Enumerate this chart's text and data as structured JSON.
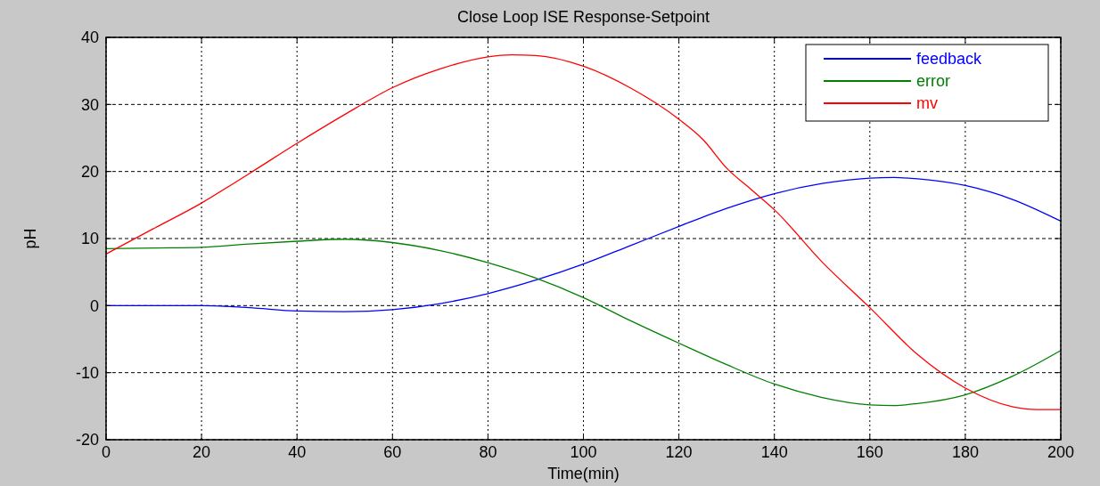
{
  "chart_data": {
    "type": "line",
    "title": "Close Loop ISE Response-Setpoint",
    "xlabel": "Time(min)",
    "ylabel": "pH",
    "xlim": [
      0,
      200
    ],
    "xticks": [
      0,
      20,
      40,
      60,
      80,
      100,
      120,
      140,
      160,
      180,
      200
    ],
    "ylim": [
      -20,
      40
    ],
    "yticks": [
      -20,
      -10,
      0,
      10,
      20,
      30,
      40
    ],
    "grid": true,
    "legend": "top right",
    "line_style": "solid",
    "series": [
      {
        "name": "feedback",
        "color": "#0000ff",
        "x": [
          0,
          10,
          20,
          30,
          40,
          50,
          60,
          70,
          80,
          90,
          100,
          110,
          120,
          130,
          140,
          150,
          160,
          165,
          170,
          180,
          190,
          200
        ],
        "values": [
          0,
          0,
          0,
          -0.3,
          -0.8,
          -0.9,
          -0.6,
          0.3,
          1.8,
          3.8,
          6.2,
          9,
          11.8,
          14.5,
          16.7,
          18.2,
          19,
          19.1,
          18.9,
          17.9,
          15.8,
          12.6
        ]
      },
      {
        "name": "error",
        "color": "#008000",
        "x": [
          0,
          10,
          20,
          30,
          40,
          50,
          60,
          70,
          80,
          90,
          100,
          110,
          120,
          130,
          140,
          150,
          160,
          165,
          170,
          180,
          190,
          200
        ],
        "values": [
          8.5,
          8.6,
          8.7,
          9.2,
          9.6,
          9.9,
          9.4,
          8.2,
          6.4,
          4.1,
          1.2,
          -2.3,
          -5.6,
          -8.8,
          -11.7,
          -13.7,
          -14.8,
          -14.9,
          -14.6,
          -13.3,
          -10.5,
          -6.7
        ]
      },
      {
        "name": "mv",
        "color": "#ff0000",
        "x": [
          0,
          10,
          20,
          30,
          40,
          50,
          60,
          70,
          80,
          85,
          90,
          100,
          110,
          120,
          125,
          130,
          135,
          140,
          150,
          160,
          170,
          180,
          190,
          195,
          200
        ],
        "values": [
          7.7,
          11.5,
          15.3,
          19.7,
          24.2,
          28.5,
          32.5,
          35.3,
          37.1,
          37.4,
          37.3,
          35.7,
          32.4,
          27.8,
          24.8,
          20.5,
          17.4,
          14.3,
          6.5,
          -0.3,
          -7.3,
          -12.3,
          -15.1,
          -15.5,
          -15.5
        ]
      }
    ]
  }
}
